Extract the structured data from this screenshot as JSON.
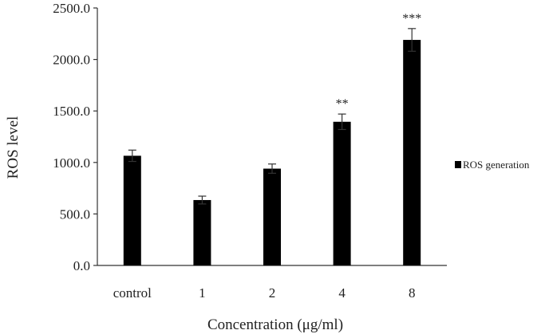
{
  "chart_data": {
    "type": "bar",
    "title": "",
    "xlabel": "Concentration (μg/ml)",
    "ylabel": "ROS level",
    "categories": [
      "control",
      "1",
      "2",
      "4",
      "8"
    ],
    "series": [
      {
        "name": "ROS generation",
        "values": [
          1065,
          635,
          940,
          1395,
          2190
        ],
        "errors": [
          55,
          38,
          45,
          75,
          110
        ],
        "color": "#000000"
      }
    ],
    "significance": [
      "",
      "",
      "",
      "**",
      "***"
    ],
    "ylim": [
      0,
      2500
    ],
    "yticks": [
      0,
      500,
      1000,
      1500,
      2000,
      2500
    ],
    "ytick_labels": [
      "0.0",
      "500.0",
      "1000.0",
      "1500.0",
      "2000.0",
      "2500.0"
    ],
    "grid": false,
    "legend_position": "right"
  }
}
